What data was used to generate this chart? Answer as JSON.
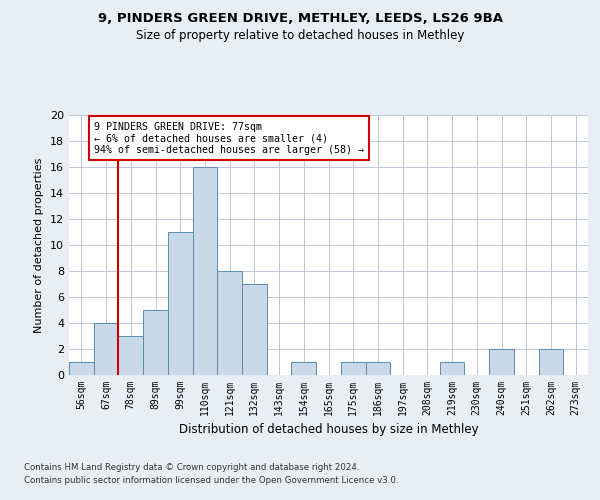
{
  "title_line1": "9, PINDERS GREEN DRIVE, METHLEY, LEEDS, LS26 9BA",
  "title_line2": "Size of property relative to detached houses in Methley",
  "xlabel": "Distribution of detached houses by size in Methley",
  "ylabel": "Number of detached properties",
  "categories": [
    "56sqm",
    "67sqm",
    "78sqm",
    "89sqm",
    "99sqm",
    "110sqm",
    "121sqm",
    "132sqm",
    "143sqm",
    "154sqm",
    "165sqm",
    "175sqm",
    "186sqm",
    "197sqm",
    "208sqm",
    "219sqm",
    "230sqm",
    "240sqm",
    "251sqm",
    "262sqm",
    "273sqm"
  ],
  "values": [
    1,
    4,
    3,
    5,
    11,
    16,
    8,
    7,
    0,
    1,
    0,
    1,
    1,
    0,
    0,
    1,
    0,
    2,
    0,
    2,
    0
  ],
  "bar_color": "#c9d9e8",
  "bar_edge_color": "#5a8db5",
  "vline_x_index": 2,
  "vline_color": "#cc0000",
  "annotation_text": "9 PINDERS GREEN DRIVE: 77sqm\n← 6% of detached houses are smaller (4)\n94% of semi-detached houses are larger (58) →",
  "annotation_box_color": "#ffffff",
  "annotation_box_edge": "#cc0000",
  "ylim": [
    0,
    20
  ],
  "yticks": [
    0,
    2,
    4,
    6,
    8,
    10,
    12,
    14,
    16,
    18,
    20
  ],
  "grid_color": "#c0c8d8",
  "footer_line1": "Contains HM Land Registry data © Crown copyright and database right 2024.",
  "footer_line2": "Contains public sector information licensed under the Open Government Licence v3.0.",
  "background_color": "#e8eef4",
  "plot_bg_color": "#ffffff"
}
